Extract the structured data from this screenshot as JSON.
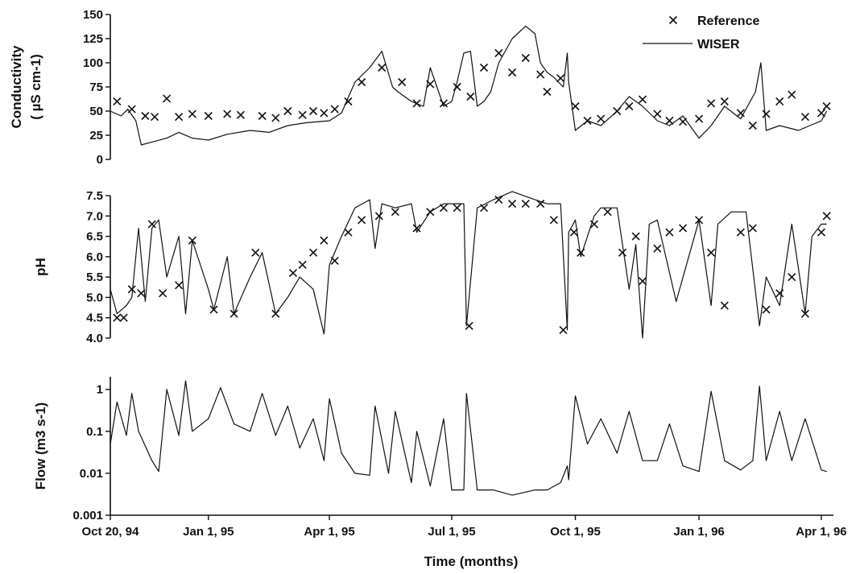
{
  "figure": {
    "xlabel": "Time (months)"
  },
  "chart_data": [
    {
      "type": "line",
      "panel": "conductivity",
      "ylabel_lines": [
        "Conductivity",
        "( µS cm-1)"
      ],
      "ylim": [
        0,
        150
      ],
      "yticks": [
        0,
        25,
        50,
        75,
        100,
        125,
        150
      ],
      "ytick_labels": [
        "0",
        "25",
        "50",
        "75",
        "100",
        "125",
        "150"
      ],
      "log_scale": false,
      "legend": {
        "placement": "top-right",
        "entries": [
          "Reference",
          "WISER"
        ]
      },
      "series": [
        {
          "name": "WISER",
          "style": "line",
          "x": [
            "1994-10-20",
            "1994-10-28",
            "1994-11-02",
            "1994-11-08",
            "1994-11-12",
            "1994-11-20",
            "1994-12-01",
            "1994-12-10",
            "1994-12-20",
            "1995-01-01",
            "1995-01-15",
            "1995-02-01",
            "1995-02-15",
            "1995-03-01",
            "1995-03-15",
            "1995-04-01",
            "1995-04-10",
            "1995-04-20",
            "1995-05-01",
            "1995-05-10",
            "1995-05-18",
            "1995-05-22",
            "1995-06-01",
            "1995-06-10",
            "1995-06-15",
            "1995-06-25",
            "1995-07-01",
            "1995-07-05",
            "1995-07-10",
            "1995-07-15",
            "1995-07-20",
            "1995-07-25",
            "1995-07-30",
            "1995-08-05",
            "1995-08-15",
            "1995-08-25",
            "1995-09-01",
            "1995-09-05",
            "1995-09-10",
            "1995-09-15",
            "1995-09-22",
            "1995-09-25",
            "1995-09-26",
            "1995-10-01",
            "1995-10-10",
            "1995-10-20",
            "1995-11-01",
            "1995-11-10",
            "1995-11-20",
            "1995-12-01",
            "1995-12-10",
            "1995-12-20",
            "1996-01-01",
            "1996-01-10",
            "1996-01-20",
            "1996-02-01",
            "1996-02-12",
            "1996-02-16",
            "1996-02-20",
            "1996-03-01",
            "1996-03-15",
            "1996-04-01",
            "1996-04-05"
          ],
          "values": [
            50,
            45,
            52,
            40,
            15,
            18,
            22,
            28,
            22,
            20,
            26,
            30,
            28,
            35,
            38,
            40,
            48,
            80,
            95,
            112,
            75,
            70,
            60,
            55,
            95,
            55,
            60,
            80,
            110,
            112,
            55,
            60,
            70,
            100,
            125,
            138,
            130,
            100,
            90,
            85,
            75,
            110,
            80,
            30,
            40,
            35,
            50,
            65,
            55,
            40,
            35,
            45,
            22,
            35,
            55,
            42,
            70,
            100,
            30,
            35,
            30,
            40,
            50
          ]
        },
        {
          "name": "Reference",
          "style": "marker",
          "x": [
            "1994-10-25",
            "1994-11-05",
            "1994-11-15",
            "1994-11-22",
            "1994-12-01",
            "1994-12-10",
            "1994-12-20",
            "1995-01-01",
            "1995-01-15",
            "1995-01-25",
            "1995-02-10",
            "1995-02-20",
            "1995-03-01",
            "1995-03-12",
            "1995-03-20",
            "1995-03-28",
            "1995-04-05",
            "1995-04-15",
            "1995-04-25",
            "1995-05-10",
            "1995-05-25",
            "1995-06-05",
            "1995-06-15",
            "1995-06-25",
            "1995-07-05",
            "1995-07-15",
            "1995-07-25",
            "1995-08-05",
            "1995-08-15",
            "1995-08-25",
            "1995-09-05",
            "1995-09-10",
            "1995-09-20",
            "1995-10-01",
            "1995-10-10",
            "1995-10-20",
            "1995-11-01",
            "1995-11-10",
            "1995-11-20",
            "1995-12-01",
            "1995-12-10",
            "1995-12-20",
            "1996-01-01",
            "1996-01-10",
            "1996-01-20",
            "1996-02-01",
            "1996-02-10",
            "1996-02-20",
            "1996-03-01",
            "1996-03-10",
            "1996-03-20",
            "1996-04-01",
            "1996-04-05"
          ],
          "values": [
            60,
            52,
            45,
            44,
            63,
            44,
            47,
            45,
            47,
            46,
            45,
            43,
            50,
            46,
            50,
            48,
            52,
            60,
            80,
            95,
            80,
            58,
            78,
            58,
            75,
            65,
            95,
            110,
            90,
            105,
            88,
            70,
            84,
            55,
            40,
            42,
            50,
            55,
            62,
            47,
            40,
            39,
            42,
            58,
            60,
            48,
            35,
            47,
            60,
            67,
            44,
            48,
            55
          ]
        }
      ]
    },
    {
      "type": "line",
      "panel": "pH",
      "ylabel_lines": [
        "pH"
      ],
      "ylim": [
        4.0,
        7.5
      ],
      "yticks": [
        4.0,
        4.5,
        5.0,
        5.5,
        6.0,
        6.5,
        7.0,
        7.5
      ],
      "ytick_labels": [
        "4.0",
        "4.5",
        "5.0",
        "5.5",
        "6.0",
        "6.5",
        "7.0",
        "7.5"
      ],
      "log_scale": false,
      "series": [
        {
          "name": "WISER",
          "style": "line",
          "x": [
            "1994-10-20",
            "1994-10-25",
            "1994-11-01",
            "1994-11-05",
            "1994-11-10",
            "1994-11-15",
            "1994-11-20",
            "1994-11-25",
            "1994-12-01",
            "1994-12-10",
            "1994-12-15",
            "1994-12-20",
            "1995-01-01",
            "1995-01-05",
            "1995-01-15",
            "1995-01-20",
            "1995-02-01",
            "1995-02-10",
            "1995-02-20",
            "1995-03-01",
            "1995-03-10",
            "1995-03-20",
            "1995-03-28",
            "1995-04-01",
            "1995-04-10",
            "1995-04-20",
            "1995-05-01",
            "1995-05-05",
            "1995-05-10",
            "1995-05-20",
            "1995-06-01",
            "1995-06-05",
            "1995-06-15",
            "1995-06-25",
            "1995-07-05",
            "1995-07-10",
            "1995-07-12",
            "1995-07-20",
            "1995-08-01",
            "1995-08-15",
            "1995-09-01",
            "1995-09-10",
            "1995-09-20",
            "1995-09-25",
            "1995-09-26",
            "1995-10-01",
            "1995-10-05",
            "1995-10-15",
            "1995-10-20",
            "1995-11-01",
            "1995-11-10",
            "1995-11-15",
            "1995-11-20",
            "1995-11-25",
            "1995-12-01",
            "1995-12-15",
            "1996-01-01",
            "1996-01-10",
            "1996-01-15",
            "1996-01-25",
            "1996-02-05",
            "1996-02-15",
            "1996-02-20",
            "1996-03-01",
            "1996-03-10",
            "1996-03-20",
            "1996-03-25",
            "1996-04-01",
            "1996-04-05"
          ],
          "values": [
            5.2,
            4.6,
            4.8,
            5.0,
            6.7,
            4.9,
            6.7,
            6.9,
            5.5,
            6.5,
            4.6,
            6.4,
            5.2,
            4.7,
            6.0,
            4.6,
            5.5,
            6.1,
            4.6,
            5.0,
            5.5,
            5.2,
            4.1,
            5.8,
            6.5,
            7.2,
            7.4,
            6.2,
            7.3,
            7.2,
            7.3,
            6.6,
            7.1,
            7.3,
            7.3,
            7.3,
            4.3,
            7.2,
            7.4,
            7.6,
            7.4,
            7.3,
            7.3,
            4.2,
            6.6,
            6.9,
            6.0,
            7.0,
            7.2,
            7.2,
            5.2,
            6.3,
            4.0,
            6.8,
            6.9,
            4.9,
            6.9,
            4.8,
            6.8,
            7.1,
            7.1,
            4.3,
            5.5,
            4.8,
            6.8,
            4.6,
            6.5,
            6.8,
            6.8
          ]
        },
        {
          "name": "Reference",
          "style": "marker",
          "x": [
            "1994-10-25",
            "1994-10-30",
            "1994-11-05",
            "1994-11-12",
            "1994-11-20",
            "1994-11-28",
            "1994-12-10",
            "1994-12-20",
            "1995-01-05",
            "1995-01-20",
            "1995-02-05",
            "1995-02-20",
            "1995-03-05",
            "1995-03-12",
            "1995-03-20",
            "1995-03-28",
            "1995-04-05",
            "1995-04-15",
            "1995-04-25",
            "1995-05-08",
            "1995-05-20",
            "1995-06-05",
            "1995-06-15",
            "1995-06-25",
            "1995-07-05",
            "1995-07-14",
            "1995-07-25",
            "1995-08-05",
            "1995-08-15",
            "1995-08-25",
            "1995-09-05",
            "1995-09-15",
            "1995-09-22",
            "1995-09-30",
            "1995-10-05",
            "1995-10-15",
            "1995-10-25",
            "1995-11-05",
            "1995-11-15",
            "1995-11-20",
            "1995-12-01",
            "1995-12-10",
            "1995-12-20",
            "1996-01-01",
            "1996-01-10",
            "1996-01-20",
            "1996-02-01",
            "1996-02-10",
            "1996-02-20",
            "1996-03-01",
            "1996-03-10",
            "1996-03-20",
            "1996-04-01",
            "1996-04-05"
          ],
          "values": [
            4.5,
            4.5,
            5.2,
            5.1,
            6.8,
            5.1,
            5.3,
            6.4,
            4.7,
            4.6,
            6.1,
            4.6,
            5.6,
            5.8,
            6.1,
            6.4,
            5.9,
            6.6,
            6.9,
            7.0,
            7.1,
            6.7,
            7.1,
            7.2,
            7.2,
            4.3,
            7.2,
            7.4,
            7.3,
            7.3,
            7.3,
            6.9,
            4.2,
            6.6,
            6.1,
            6.8,
            7.1,
            6.1,
            6.5,
            5.4,
            6.2,
            6.6,
            6.7,
            6.9,
            6.1,
            4.8,
            6.6,
            6.7,
            4.7,
            5.1,
            5.5,
            4.6,
            6.6,
            7.0
          ]
        }
      ]
    },
    {
      "type": "line",
      "panel": "flow",
      "ylabel_lines": [
        "Flow (m3 s-1)"
      ],
      "ylim": [
        0.001,
        2
      ],
      "yticks": [
        0.001,
        0.01,
        0.1,
        1
      ],
      "ytick_labels": [
        "0.001",
        "0.01",
        "0.1",
        "1"
      ],
      "log_scale": true,
      "series": [
        {
          "name": "Flow",
          "style": "line",
          "x": [
            "1994-10-20",
            "1994-10-25",
            "1994-11-01",
            "1994-11-05",
            "1994-11-10",
            "1994-11-20",
            "1994-11-25",
            "1994-12-01",
            "1994-12-10",
            "1994-12-15",
            "1994-12-20",
            "1995-01-01",
            "1995-01-10",
            "1995-01-20",
            "1995-02-01",
            "1995-02-10",
            "1995-02-20",
            "1995-03-01",
            "1995-03-10",
            "1995-03-20",
            "1995-03-28",
            "1995-04-01",
            "1995-04-10",
            "1995-04-20",
            "1995-05-01",
            "1995-05-05",
            "1995-05-15",
            "1995-05-20",
            "1995-06-01",
            "1995-06-05",
            "1995-06-15",
            "1995-06-25",
            "1995-07-01",
            "1995-07-10",
            "1995-07-12",
            "1995-07-20",
            "1995-08-01",
            "1995-08-15",
            "1995-09-01",
            "1995-09-10",
            "1995-09-20",
            "1995-09-25",
            "1995-09-26",
            "1995-10-01",
            "1995-10-10",
            "1995-10-20",
            "1995-11-01",
            "1995-11-10",
            "1995-11-20",
            "1995-12-01",
            "1995-12-10",
            "1995-12-20",
            "1996-01-01",
            "1996-01-10",
            "1996-01-20",
            "1996-02-01",
            "1996-02-10",
            "1996-02-15",
            "1996-02-20",
            "1996-03-01",
            "1996-03-10",
            "1996-03-20",
            "1996-04-01",
            "1996-04-05"
          ],
          "values": [
            0.05,
            0.5,
            0.08,
            0.8,
            0.1,
            0.02,
            0.011,
            1.0,
            0.08,
            1.6,
            0.1,
            0.2,
            1.1,
            0.15,
            0.1,
            0.8,
            0.08,
            0.4,
            0.04,
            0.2,
            0.02,
            0.6,
            0.03,
            0.01,
            0.009,
            0.4,
            0.01,
            0.3,
            0.006,
            0.1,
            0.005,
            0.2,
            0.004,
            0.004,
            0.8,
            0.004,
            0.004,
            0.003,
            0.004,
            0.004,
            0.006,
            0.015,
            0.007,
            0.7,
            0.05,
            0.2,
            0.03,
            0.3,
            0.02,
            0.02,
            0.15,
            0.015,
            0.011,
            0.9,
            0.02,
            0.012,
            0.02,
            1.2,
            0.02,
            0.3,
            0.02,
            0.2,
            0.012,
            0.011
          ]
        }
      ]
    }
  ],
  "xaxis": {
    "domain": [
      "1994-10-20",
      "1996-04-10"
    ],
    "ticks": [
      {
        "date": "1994-10-20",
        "label": "Oct 20, 94"
      },
      {
        "date": "1995-01-01",
        "label": "Jan 1, 95"
      },
      {
        "date": "1995-04-01",
        "label": "Apr 1, 95"
      },
      {
        "date": "1995-07-01",
        "label": "Jul 1, 95"
      },
      {
        "date": "1995-10-01",
        "label": "Oct 1, 95"
      },
      {
        "date": "1996-01-01",
        "label": "Jan 1, 96"
      },
      {
        "date": "1996-04-01",
        "label": "Apr 1, 96"
      }
    ]
  }
}
